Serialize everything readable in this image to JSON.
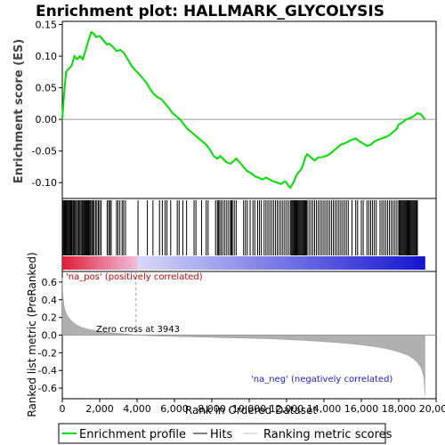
{
  "title": "Enrichment plot: HALLMARK_GLYCOLYSIS",
  "chart_data": {
    "type": "line",
    "es_panel": {
      "ylabel": "Enrichment score (ES)",
      "ylim": [
        -0.125,
        0.155
      ],
      "yticks": [
        -0.1,
        -0.05,
        0.0,
        0.05,
        0.1,
        0.15
      ],
      "ytick_labels": [
        "-0.10",
        "-0.05",
        "0.00",
        "0.05",
        "0.10",
        "0.15"
      ],
      "series": [
        {
          "name": "Enrichment profile",
          "color": "#00dd00",
          "x": [
            0,
            80,
            200,
            350,
            500,
            650,
            800,
            950,
            1100,
            1250,
            1400,
            1550,
            1700,
            1800,
            2000,
            2200,
            2400,
            2500,
            2700,
            2900,
            3100,
            3300,
            3500,
            3700,
            3900,
            4100,
            4300,
            4500,
            4700,
            4900,
            5100,
            5300,
            5500,
            5700,
            5900,
            6100,
            6300,
            6500,
            6700,
            6900,
            7100,
            7300,
            7500,
            7700,
            7900,
            8100,
            8300,
            8450,
            8600,
            8800,
            9000,
            9200,
            9300,
            9500,
            9700,
            9900,
            10100,
            10300,
            10500,
            10700,
            10900,
            11100,
            11300,
            11500,
            11700,
            11800,
            11900,
            12000,
            12100,
            12200,
            12300,
            12400,
            12500,
            12600,
            12700,
            12800,
            12900,
            13000,
            13100,
            13300,
            13500,
            13700,
            13900,
            14100,
            14300,
            14500,
            14700,
            14900,
            15100,
            15300,
            15500,
            15700,
            15900,
            16100,
            16300,
            16500,
            16700,
            16900,
            17100,
            17300,
            17500,
            17700,
            17900,
            18000,
            18200,
            18400,
            18600,
            18800,
            19000,
            19200,
            19400
          ],
          "y": [
            0.0,
            0.035,
            0.075,
            0.08,
            0.085,
            0.1,
            0.095,
            0.1,
            0.095,
            0.11,
            0.125,
            0.138,
            0.135,
            0.13,
            0.132,
            0.125,
            0.118,
            0.12,
            0.115,
            0.108,
            0.11,
            0.105,
            0.095,
            0.085,
            0.078,
            0.072,
            0.065,
            0.058,
            0.048,
            0.04,
            0.035,
            0.032,
            0.025,
            0.018,
            0.01,
            0.005,
            0.0,
            -0.008,
            -0.015,
            -0.02,
            -0.025,
            -0.03,
            -0.035,
            -0.04,
            -0.048,
            -0.058,
            -0.062,
            -0.058,
            -0.062,
            -0.068,
            -0.07,
            -0.065,
            -0.062,
            -0.068,
            -0.075,
            -0.082,
            -0.085,
            -0.09,
            -0.092,
            -0.095,
            -0.092,
            -0.095,
            -0.098,
            -0.1,
            -0.102,
            -0.1,
            -0.098,
            -0.1,
            -0.105,
            -0.108,
            -0.103,
            -0.098,
            -0.09,
            -0.085,
            -0.082,
            -0.078,
            -0.07,
            -0.06,
            -0.055,
            -0.06,
            -0.065,
            -0.06,
            -0.06,
            -0.058,
            -0.055,
            -0.05,
            -0.045,
            -0.04,
            -0.038,
            -0.035,
            -0.032,
            -0.03,
            -0.035,
            -0.038,
            -0.042,
            -0.04,
            -0.035,
            -0.032,
            -0.03,
            -0.028,
            -0.025,
            -0.02,
            -0.015,
            -0.008,
            -0.005,
            0.0,
            0.002,
            0.005,
            0.01,
            0.008,
            0.0
          ]
        }
      ]
    },
    "hits_panel": {
      "positions": [
        50,
        100,
        140,
        190,
        230,
        280,
        320,
        370,
        410,
        450,
        500,
        560,
        600,
        650,
        700,
        760,
        820,
        880,
        940,
        1000,
        1060,
        1100,
        1150,
        1200,
        1240,
        1290,
        1330,
        1380,
        1420,
        1470,
        1520,
        1580,
        1640,
        1700,
        1780,
        1850,
        1930,
        2000,
        2080,
        2400,
        2480,
        2550,
        2620,
        2900,
        2980,
        3080,
        3200,
        3280,
        3380,
        4050,
        4550,
        4850,
        5200,
        5350,
        5500,
        5600,
        5800,
        6150,
        6250,
        6450,
        6650,
        7050,
        7150,
        7450,
        7700,
        7800,
        8200,
        8300,
        8350,
        8420,
        8500,
        8600,
        8700,
        8800,
        8900,
        9000,
        9050,
        9100,
        9200,
        9300,
        9700,
        9800,
        9900,
        10050,
        10200,
        10300,
        10450,
        10550,
        10650,
        10800,
        10900,
        11000,
        11100,
        11200,
        11300,
        11400,
        11500,
        11600,
        11700,
        11800,
        11900,
        12000,
        12100,
        12200,
        12250,
        12300,
        12350,
        12400,
        12450,
        12500,
        12550,
        12600,
        12650,
        12700,
        12750,
        12800,
        12850,
        12900,
        12950,
        13000,
        13050,
        13100,
        13200,
        13300,
        13400,
        13500,
        13600,
        13700,
        13800,
        13900,
        14000,
        14100,
        14200,
        14300,
        14400,
        14500,
        14600,
        14700,
        14800,
        14900,
        15000,
        15100,
        15200,
        15300,
        15500,
        15700,
        15800,
        16000,
        16100,
        16300,
        16400,
        16500,
        16600,
        16700,
        16800,
        17000,
        17100,
        17200,
        17300,
        17400,
        17500,
        17600,
        17700,
        17800,
        17900,
        18000,
        18050,
        18100,
        18150,
        18200,
        18250,
        18300,
        18350,
        18400,
        18450,
        18500,
        18550,
        18600,
        18650,
        18700,
        18750,
        18800,
        18850,
        18900,
        18950,
        19000
      ]
    },
    "metric_panel": {
      "ylabel": "Ranked list metric (PreRanked)",
      "ylim": [
        -0.72,
        0.72
      ],
      "yticks": [
        -0.6,
        -0.4,
        -0.2,
        0.0,
        0.2,
        0.4,
        0.6
      ],
      "ytick_labels": [
        "-0.6",
        "-0.4",
        "-0.2",
        "0.0",
        "0.2",
        "0.4",
        "0.6"
      ],
      "x": [
        0,
        20,
        60,
        120,
        200,
        300,
        450,
        600,
        800,
        1000,
        1300,
        1600,
        2000,
        2500,
        3000,
        3500,
        3943,
        5000,
        6000,
        7000,
        8000,
        9000,
        10000,
        11000,
        12000,
        13000,
        14000,
        15000,
        16000,
        17000,
        17500,
        18000,
        18500,
        18800,
        19000,
        19200,
        19350,
        19400
      ],
      "y": [
        0.65,
        0.5,
        0.38,
        0.3,
        0.25,
        0.21,
        0.17,
        0.14,
        0.11,
        0.09,
        0.07,
        0.055,
        0.04,
        0.03,
        0.02,
        0.01,
        0.0,
        -0.01,
        -0.015,
        -0.02,
        -0.025,
        -0.03,
        -0.035,
        -0.04,
        -0.05,
        -0.06,
        -0.075,
        -0.09,
        -0.11,
        -0.14,
        -0.16,
        -0.19,
        -0.23,
        -0.27,
        -0.31,
        -0.37,
        -0.48,
        -0.68
      ],
      "zero_cross": 3943,
      "zero_cross_label": "Zero cross at 3943",
      "pos_label": "'na_pos' (positively correlated)",
      "neg_label": "'na_neg' (negatively correlated)"
    },
    "xlabel": "Rank in Ordered Dataset",
    "xlim": [
      0,
      20000
    ],
    "xticks": [
      0,
      2000,
      4000,
      6000,
      8000,
      10000,
      12000,
      14000,
      16000,
      18000,
      20000
    ],
    "xtick_labels": [
      "0",
      "2,000",
      "4,000",
      "6,000",
      "8,000",
      "10,000",
      "12,000",
      "14,000",
      "16,000",
      "18,000",
      "20,000"
    ],
    "total_genes": 19400,
    "legend": [
      {
        "label": "Enrichment profile",
        "color": "#00dd00"
      },
      {
        "label": "Hits",
        "color": "#000000"
      },
      {
        "label": "Ranking metric scores",
        "color": "#c0c0c0"
      }
    ],
    "colors": {
      "bar_pos": "#e0203a",
      "bar_pos_light": "#f4b6d8",
      "bar_mid": "#d8d8f8",
      "bar_neg": "#1010d0",
      "metric_fill": "#b0b0b0",
      "zero_line": "#999999"
    }
  }
}
